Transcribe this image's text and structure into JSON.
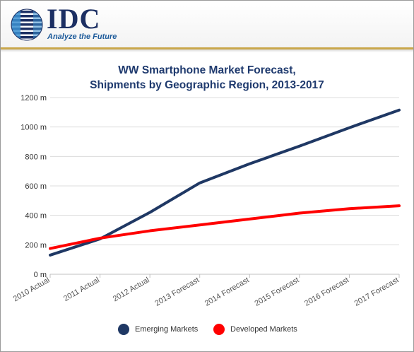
{
  "logo": {
    "name": "IDC",
    "tagline": "Analyze the Future"
  },
  "colors": {
    "brand_navy": "#1c2f63",
    "accent_gold": "#c9a74b",
    "emerging": "#1f3864",
    "developed": "#ff0000"
  },
  "chart_data": {
    "type": "line",
    "title": [
      "WW Smartphone Market Forecast,",
      "Shipments by Geographic Region, 2013-2017"
    ],
    "categories": [
      "2010 Actual",
      "2011 Actual",
      "2012 Actual",
      "2013 Forecast",
      "2014 Forecast",
      "2015 Forecast",
      "2016 Forecast",
      "2017 Forecast"
    ],
    "series": [
      {
        "name": "Emerging Markets",
        "color": "#1f3864",
        "values": [
          130,
          240,
          420,
          620,
          750,
          870,
          995,
          1115
        ]
      },
      {
        "name": "Developed Markets",
        "color": "#ff0000",
        "values": [
          175,
          245,
          295,
          335,
          375,
          415,
          445,
          465
        ]
      }
    ],
    "ylim": [
      0,
      1200
    ],
    "yticks": [
      0,
      200,
      400,
      600,
      800,
      1000,
      1200
    ],
    "ytick_labels": [
      "0 m",
      "200 m",
      "400 m",
      "600 m",
      "800 m",
      "1000 m",
      "1200 m"
    ],
    "grid": true,
    "legend_position": "bottom"
  }
}
